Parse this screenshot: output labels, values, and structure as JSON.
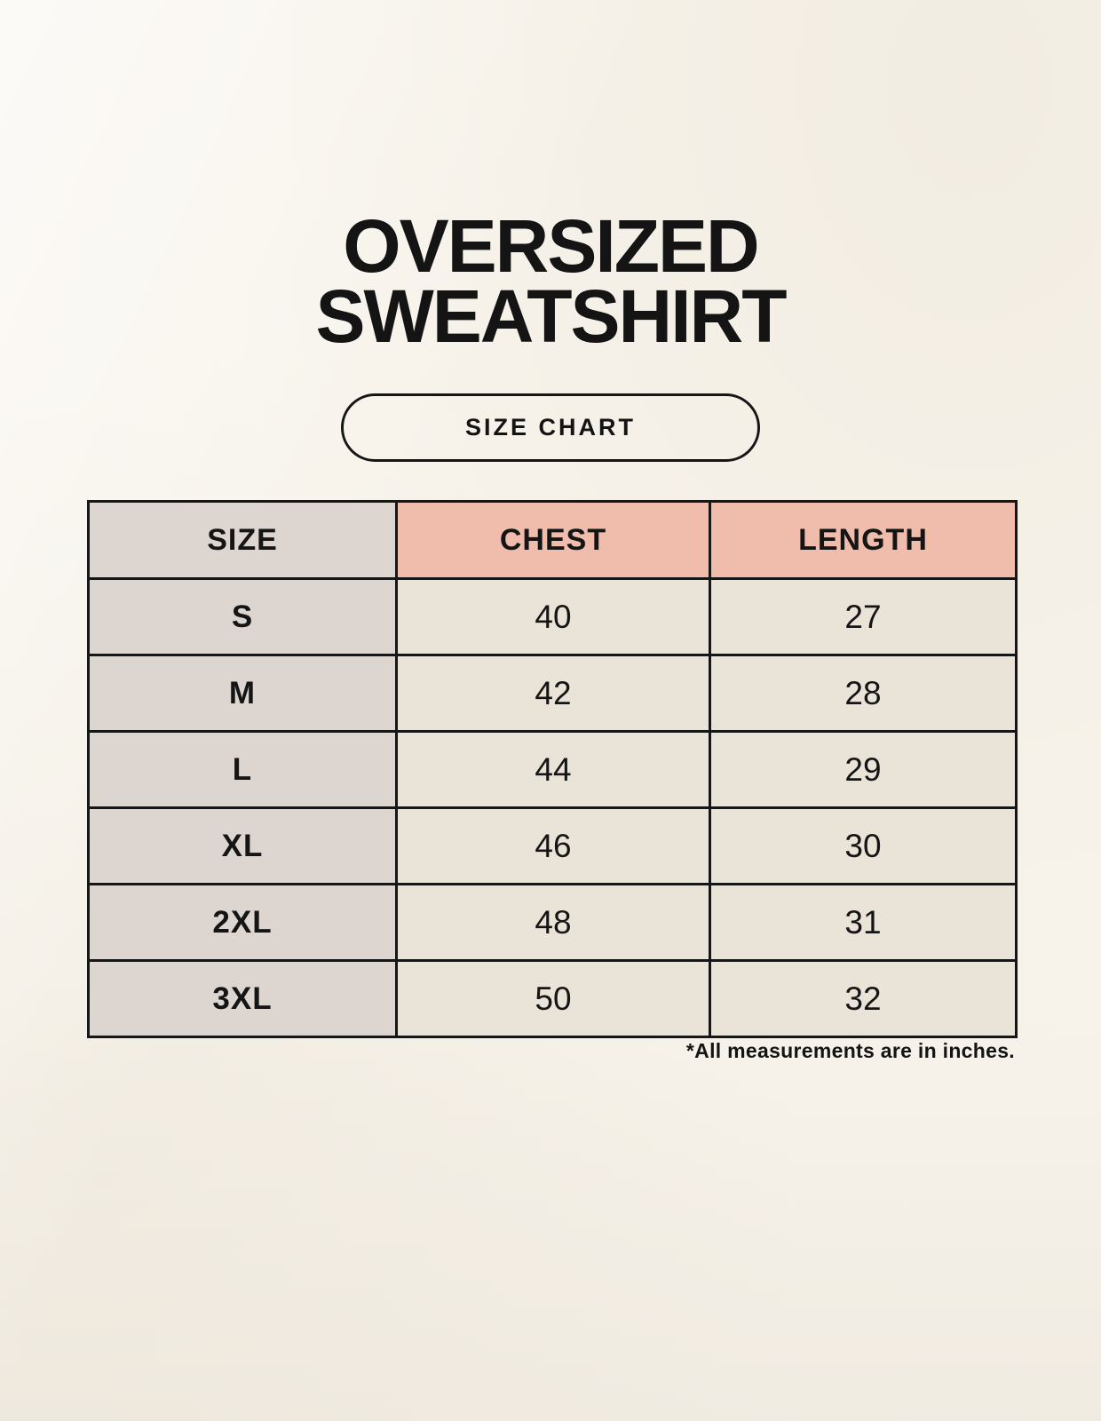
{
  "page": {
    "title_line1": "OVERSIZED",
    "title_line2": "SWEATSHIRT",
    "pill_label": "SIZE CHART",
    "footnote": "*All measurements are in inches."
  },
  "colors": {
    "background": "#f8f4ec",
    "header_accent_pink": "#f0bcab",
    "size_column_gray": "#ddd5cf",
    "data_cell_cream": "#eae3d8",
    "table_border": "#161616",
    "text": "#141414"
  },
  "chart_data": {
    "type": "table",
    "title": "OVERSIZED SWEATSHIRT — SIZE CHART",
    "columns": [
      "SIZE",
      "CHEST",
      "LENGTH"
    ],
    "rows": [
      [
        "S",
        "40",
        "27"
      ],
      [
        "M",
        "42",
        "28"
      ],
      [
        "L",
        "44",
        "29"
      ],
      [
        "XL",
        "46",
        "30"
      ],
      [
        "2XL",
        "48",
        "31"
      ],
      [
        "3XL",
        "50",
        "32"
      ]
    ],
    "units_note": "*All measurements are in inches."
  }
}
